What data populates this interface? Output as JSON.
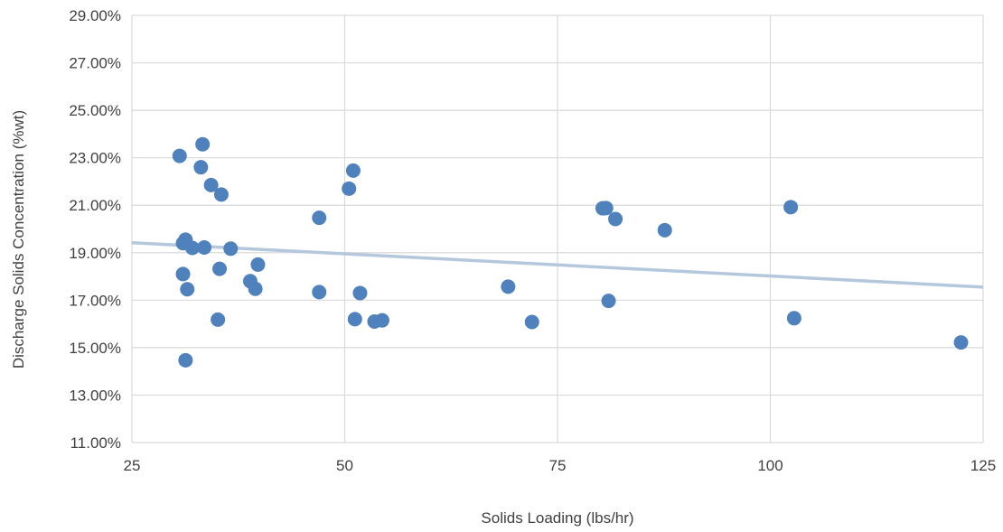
{
  "chart_data": {
    "type": "scatter",
    "title": "",
    "xlabel": "Solids Loading (lbs/hr)",
    "ylabel": "Discharge Solids Concentration (%wt)",
    "xlim": [
      25,
      125
    ],
    "ylim": [
      11,
      29
    ],
    "x_ticks": [
      25,
      50,
      75,
      100,
      125
    ],
    "x_tick_labels": [
      "25",
      "50",
      "75",
      "100",
      "125"
    ],
    "y_ticks": [
      11,
      13,
      15,
      17,
      19,
      21,
      23,
      25,
      27,
      29
    ],
    "y_tick_labels": [
      "11.00%",
      "13.00%",
      "15.00%",
      "17.00%",
      "19.00%",
      "21.00%",
      "23.00%",
      "25.00%",
      "27.00%",
      "29.00%"
    ],
    "grid": true,
    "legend": "none",
    "colors": {
      "marker": "#4f81bd",
      "trendline": "#b4c7dc",
      "grid": "#d9d9d9",
      "axis_text": "#404040"
    },
    "series": [
      {
        "points": [
          {
            "x": 30.6,
            "y": 23.08
          },
          {
            "x": 33.3,
            "y": 23.57
          },
          {
            "x": 33.1,
            "y": 22.6
          },
          {
            "x": 34.3,
            "y": 21.85
          },
          {
            "x": 35.5,
            "y": 21.45
          },
          {
            "x": 31.0,
            "y": 19.4
          },
          {
            "x": 31.3,
            "y": 19.55
          },
          {
            "x": 32.1,
            "y": 19.2
          },
          {
            "x": 33.5,
            "y": 19.22
          },
          {
            "x": 36.6,
            "y": 19.17
          },
          {
            "x": 31.0,
            "y": 18.1
          },
          {
            "x": 35.3,
            "y": 18.32
          },
          {
            "x": 39.8,
            "y": 18.5
          },
          {
            "x": 31.5,
            "y": 17.46
          },
          {
            "x": 38.9,
            "y": 17.8
          },
          {
            "x": 39.5,
            "y": 17.48
          },
          {
            "x": 35.1,
            "y": 16.18
          },
          {
            "x": 31.3,
            "y": 14.47
          },
          {
            "x": 47.0,
            "y": 20.47
          },
          {
            "x": 47.0,
            "y": 17.34
          },
          {
            "x": 50.5,
            "y": 21.7
          },
          {
            "x": 51.0,
            "y": 22.46
          },
          {
            "x": 51.2,
            "y": 16.2
          },
          {
            "x": 51.8,
            "y": 17.3
          },
          {
            "x": 53.5,
            "y": 16.1
          },
          {
            "x": 54.4,
            "y": 16.15
          },
          {
            "x": 69.2,
            "y": 17.57
          },
          {
            "x": 72.0,
            "y": 16.08
          },
          {
            "x": 80.3,
            "y": 20.87
          },
          {
            "x": 80.7,
            "y": 20.88
          },
          {
            "x": 81.0,
            "y": 16.97
          },
          {
            "x": 81.8,
            "y": 20.42
          },
          {
            "x": 87.6,
            "y": 19.95
          },
          {
            "x": 102.4,
            "y": 20.92
          },
          {
            "x": 102.8,
            "y": 16.24
          },
          {
            "x": 122.4,
            "y": 15.22
          }
        ]
      }
    ],
    "trendline": {
      "type": "linear",
      "start": {
        "x": 25,
        "y": 19.42
      },
      "end": {
        "x": 125,
        "y": 17.55
      }
    }
  }
}
